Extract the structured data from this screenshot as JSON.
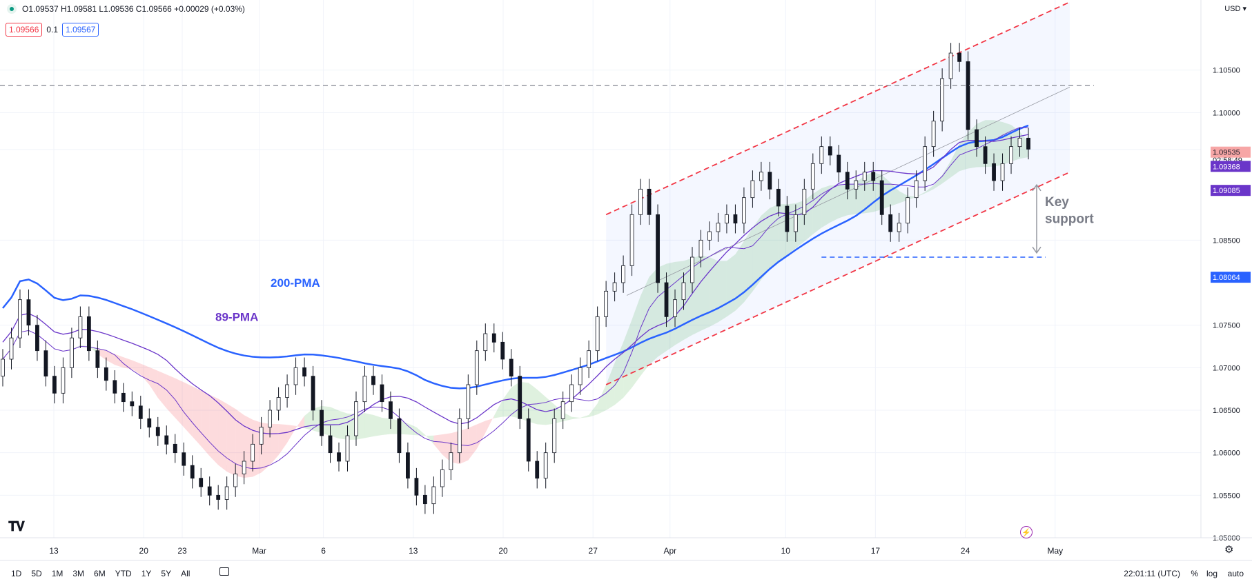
{
  "header": {
    "ohlc": "O1.09537 H1.09581 L1.09536 C1.09566 +0.00029 (+0.03%)",
    "sell_price": "1.09566",
    "spread": "0.1",
    "buy_price": "1.09567",
    "currency": "USD"
  },
  "chart_data": {
    "type": "line",
    "instrument_note": "EUR/USD daily candlestick chart with Ichimoku cloud, moving averages and rising channel",
    "ylim": [
      1.05,
      1.11
    ],
    "y_ticks": [
      "1.10500",
      "1.10000",
      "1.09566",
      "1.08500",
      "1.07500",
      "1.07000",
      "1.06500",
      "1.06000",
      "1.05500",
      "1.05000"
    ],
    "y_tick_values": [
      1.105,
      1.1,
      1.09566,
      1.085,
      1.075,
      1.07,
      1.065,
      1.06,
      1.055,
      1.05
    ],
    "x_ticks": [
      "13",
      "20",
      "23",
      "Mar",
      "6",
      "13",
      "20",
      "27",
      "Apr",
      "10",
      "17",
      "24",
      "May"
    ],
    "x_tick_days": [
      0,
      7,
      10,
      16,
      21,
      28,
      35,
      42,
      48,
      57,
      64,
      71,
      78
    ],
    "countdown": "02:58:49",
    "price_labels": [
      {
        "text": "1.09566",
        "value": 1.09566,
        "bg": "#ffffff",
        "fg": "#131722"
      },
      {
        "text": "1.09535",
        "value": 1.09535,
        "bg": "#f7a6a6",
        "fg": "#131722"
      },
      {
        "text": "1.09368",
        "value": 1.09368,
        "bg": "#6a35c9",
        "fg": "#ffffff"
      },
      {
        "text": "1.09085",
        "value": 1.09085,
        "bg": "#6a35c9",
        "fg": "#ffffff"
      },
      {
        "text": "1.08064",
        "value": 1.08064,
        "bg": "#2962ff",
        "fg": "#ffffff"
      }
    ],
    "annotations": [
      "200-PMA",
      "89-PMA",
      "Key support"
    ],
    "resistance_level": 1.1032,
    "support_level": 1.083,
    "close_series": [
      1.071,
      1.0735,
      1.078,
      1.075,
      1.072,
      1.069,
      1.067,
      1.07,
      1.0735,
      1.076,
      1.072,
      1.07,
      1.0685,
      1.067,
      1.066,
      1.0655,
      1.064,
      1.063,
      1.062,
      1.061,
      1.06,
      1.0585,
      1.057,
      1.056,
      1.055,
      1.0545,
      1.056,
      1.0575,
      1.059,
      1.061,
      1.063,
      1.065,
      1.0665,
      1.068,
      1.07,
      1.069,
      1.065,
      1.062,
      1.06,
      1.059,
      1.062,
      1.066,
      1.069,
      1.068,
      1.066,
      1.064,
      1.06,
      1.057,
      1.055,
      1.054,
      1.056,
      1.058,
      1.06,
      1.064,
      1.068,
      1.072,
      1.074,
      1.073,
      1.071,
      1.069,
      1.064,
      1.059,
      1.057,
      1.06,
      1.064,
      1.066,
      1.068,
      1.07,
      1.072,
      1.076,
      1.079,
      1.08,
      1.082,
      1.088,
      1.091,
      1.088,
      1.08,
      1.076,
      1.078,
      1.08,
      1.083,
      1.085,
      1.086,
      1.087,
      1.088,
      1.087,
      1.09,
      1.092,
      1.093,
      1.091,
      1.089,
      1.086,
      1.088,
      1.091,
      1.094,
      1.096,
      1.095,
      1.093,
      1.091,
      1.092,
      1.093,
      1.092,
      1.088,
      1.086,
      1.087,
      1.09,
      1.092,
      1.096,
      1.099,
      1.104,
      1.107,
      1.106,
      1.098,
      1.096,
      1.094,
      1.092,
      1.094,
      1.096,
      1.097,
      1.0957
    ]
  }
}
